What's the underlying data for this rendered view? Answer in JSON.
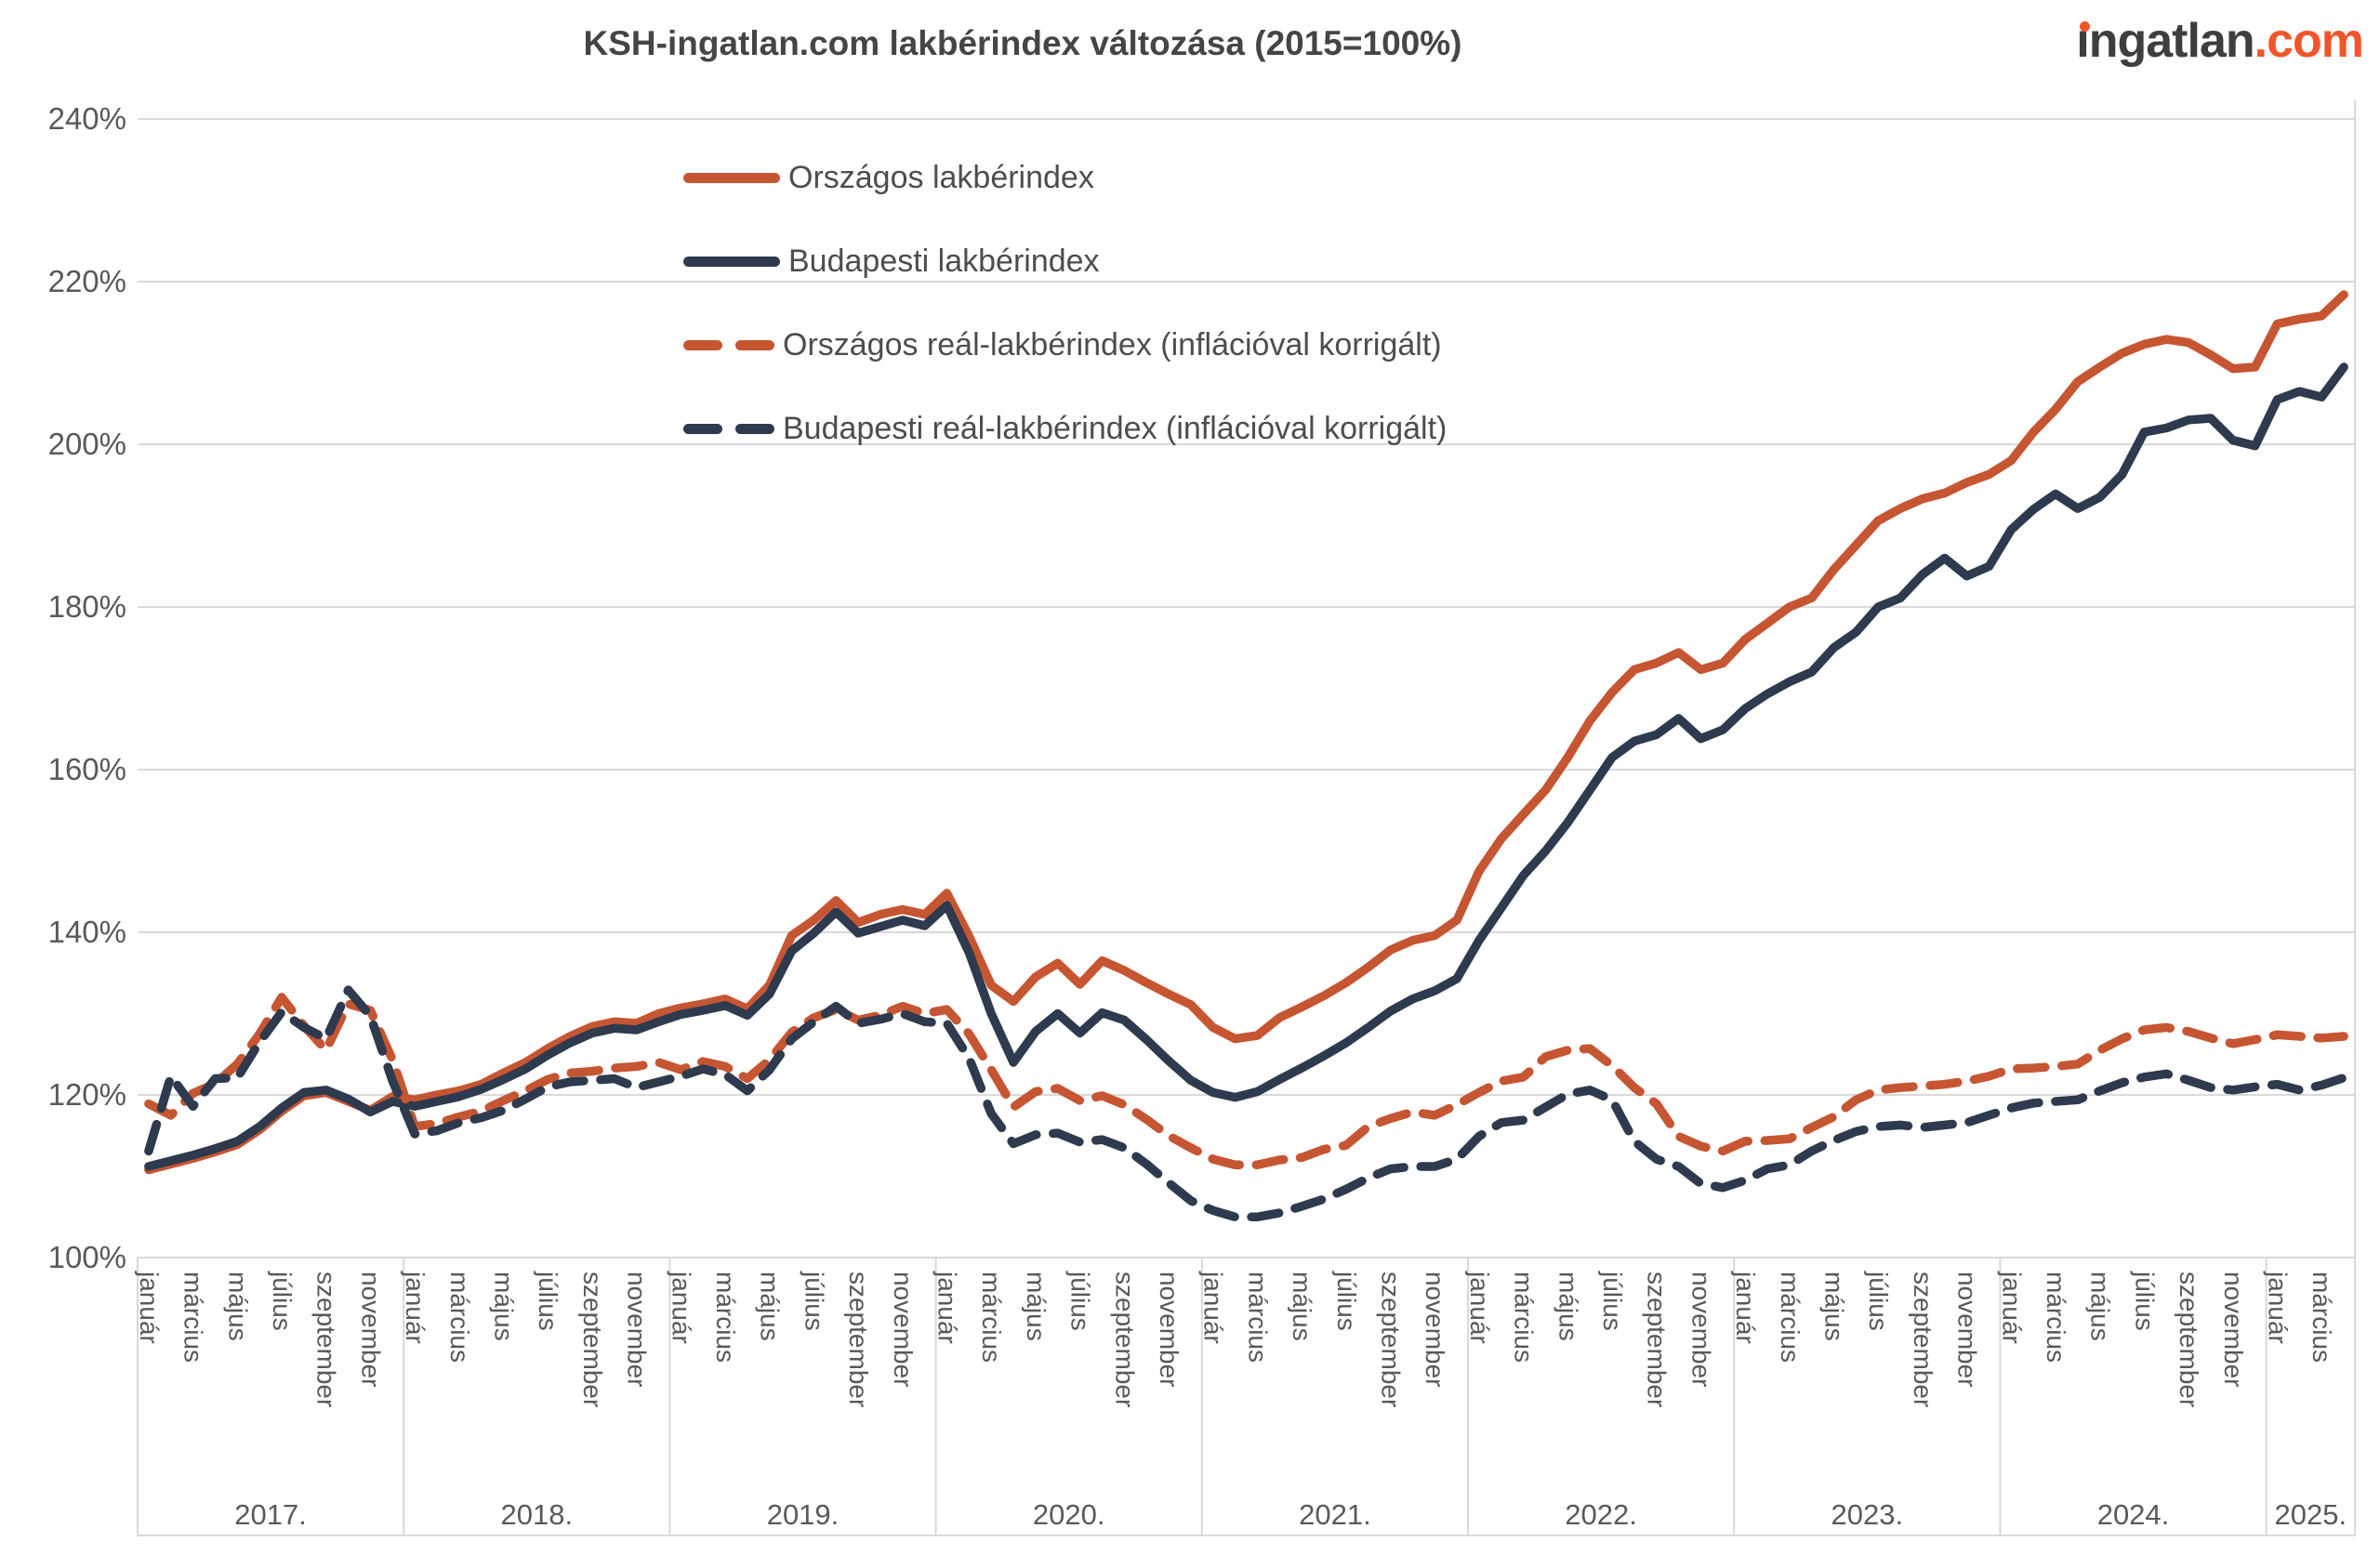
{
  "title": "KSH-ingatlan.com lakbérindex változása (2015=100%)",
  "logo": {
    "name": "ingatlan",
    "tld": ".com",
    "dark_color": "#3e3e3e",
    "orange_color": "#f0562b"
  },
  "colors": {
    "orange_line": "#c65532",
    "navy_line": "#2e3a4d",
    "grid": "#d9d9d9",
    "axis_text": "#595959",
    "title_text": "#454545"
  },
  "legend": [
    {
      "label": "Országos lakbérindex",
      "color": "#c65532",
      "style": "solid"
    },
    {
      "label": "Budapesti lakbérindex",
      "color": "#2e3a4d",
      "style": "solid"
    },
    {
      "label": "Országos reál-lakbérindex (inflációval korrigált)",
      "color": "#c65532",
      "style": "dashed"
    },
    {
      "label": "Budapesti reál-lakbérindex (inflációval korrigált)",
      "color": "#2e3a4d",
      "style": "dashed"
    }
  ],
  "chart_data": {
    "type": "line",
    "title": "KSH-ingatlan.com lakbérindex változása (2015=100%)",
    "ylim": [
      100,
      240
    ],
    "ytick_step": 20,
    "ytick_labels": [
      "240%",
      "220%",
      "200%",
      "180%",
      "160%",
      "140%",
      "120%",
      "100%"
    ],
    "x_unit": "month",
    "start": "2017-01",
    "end": "2025-04",
    "month_tick_offsets": [
      0,
      2,
      4,
      6,
      8,
      10
    ],
    "x_axis": {
      "years": [
        {
          "label": "2017.",
          "n_months": 12,
          "months": [
            "január",
            "március",
            "május",
            "július",
            "szeptember",
            "november"
          ]
        },
        {
          "label": "2018.",
          "n_months": 12,
          "months": [
            "január",
            "március",
            "május",
            "július",
            "szeptember",
            "november"
          ]
        },
        {
          "label": "2019.",
          "n_months": 12,
          "months": [
            "január",
            "március",
            "május",
            "július",
            "szeptember",
            "november"
          ]
        },
        {
          "label": "2020.",
          "n_months": 12,
          "months": [
            "január",
            "március",
            "május",
            "július",
            "szeptember",
            "november"
          ]
        },
        {
          "label": "2021.",
          "n_months": 12,
          "months": [
            "január",
            "március",
            "május",
            "július",
            "szeptember",
            "november"
          ]
        },
        {
          "label": "2022.",
          "n_months": 12,
          "months": [
            "január",
            "március",
            "május",
            "július",
            "szeptember",
            "november"
          ]
        },
        {
          "label": "2023.",
          "n_months": 12,
          "months": [
            "január",
            "március",
            "május",
            "július",
            "szeptember",
            "november"
          ]
        },
        {
          "label": "2024.",
          "n_months": 12,
          "months": [
            "január",
            "március",
            "május",
            "július",
            "szeptember",
            "november"
          ]
        },
        {
          "label": "2025.",
          "n_months": 4,
          "months": [
            "január",
            "március"
          ]
        }
      ]
    },
    "series": [
      {
        "name": "Országos lakbérindex",
        "color": "#c65532",
        "dashed": false,
        "values": [
          110.8,
          111.5,
          112.2,
          113.0,
          113.9,
          115.7,
          118.0,
          119.9,
          120.3,
          119.2,
          118.1,
          119.8,
          119.4,
          120.0,
          120.5,
          121.3,
          122.7,
          124.0,
          125.7,
          127.2,
          128.4,
          129.0,
          128.8,
          130.0,
          130.7,
          131.2,
          131.8,
          130.6,
          133.5,
          139.6,
          141.5,
          143.9,
          141.2,
          142.2,
          142.8,
          142.2,
          144.8,
          139.5,
          133.5,
          131.5,
          134.5,
          136.2,
          133.6,
          136.5,
          135.3,
          133.8,
          132.4,
          131.1,
          128.3,
          126.9,
          127.3,
          129.5,
          130.8,
          132.2,
          133.8,
          135.7,
          137.8,
          139.0,
          139.6,
          141.5,
          147.5,
          151.5,
          154.5,
          157.5,
          161.5,
          166.0,
          169.5,
          172.3,
          173.1,
          174.4,
          172.3,
          173.1,
          176.0,
          178.0,
          180.0,
          181.1,
          184.6,
          187.6,
          190.6,
          192.1,
          193.3,
          194.0,
          195.3,
          196.3,
          198.0,
          201.5,
          204.3,
          207.7,
          209.5,
          211.2,
          212.3,
          212.9,
          212.5,
          211.0,
          209.3,
          209.5,
          214.8,
          215.4,
          215.8,
          218.4
        ]
      },
      {
        "name": "Budapesti lakbérindex",
        "color": "#2e3a4d",
        "dashed": false,
        "values": [
          111.2,
          111.9,
          112.6,
          113.4,
          114.3,
          116.1,
          118.4,
          120.3,
          120.6,
          119.5,
          117.9,
          119.2,
          118.6,
          119.2,
          119.8,
          120.7,
          121.9,
          123.2,
          124.9,
          126.4,
          127.6,
          128.2,
          128.0,
          129.0,
          129.9,
          130.4,
          131.0,
          129.8,
          132.4,
          137.7,
          139.9,
          142.5,
          139.9,
          140.7,
          141.5,
          140.8,
          143.3,
          137.5,
          130.0,
          124.0,
          127.8,
          130.0,
          127.6,
          130.1,
          129.2,
          126.8,
          124.2,
          121.8,
          120.3,
          119.7,
          120.4,
          121.9,
          123.3,
          124.8,
          126.4,
          128.3,
          130.3,
          131.8,
          132.8,
          134.3,
          139.0,
          143.0,
          147.0,
          150.0,
          153.5,
          157.5,
          161.5,
          163.5,
          164.3,
          166.3,
          163.8,
          164.9,
          167.5,
          169.3,
          170.8,
          172.0,
          175.0,
          176.9,
          180.0,
          181.1,
          184.0,
          186.0,
          183.8,
          185.0,
          189.5,
          192.0,
          193.9,
          192.1,
          193.5,
          196.3,
          201.5,
          202.0,
          203.0,
          203.2,
          200.5,
          199.8,
          205.5,
          206.5,
          205.8,
          209.5
        ]
      },
      {
        "name": "Országos reál-lakbérindex (inflációval korrigált)",
        "color": "#c65532",
        "dashed": true,
        "values": [
          118.9,
          117.5,
          120.2,
          121.4,
          123.8,
          127.5,
          132.0,
          128.5,
          125.5,
          131.2,
          130.4,
          124.3,
          116.1,
          116.5,
          117.3,
          118.0,
          119.3,
          120.5,
          121.9,
          122.7,
          122.9,
          123.3,
          123.5,
          124.0,
          123.1,
          124.1,
          123.5,
          122.0,
          124.3,
          127.7,
          129.5,
          130.5,
          129.2,
          129.8,
          130.9,
          130.0,
          130.5,
          127.5,
          123.1,
          118.5,
          120.4,
          120.8,
          119.3,
          119.9,
          118.8,
          117.0,
          115.0,
          113.5,
          112.1,
          111.4,
          111.4,
          112.0,
          112.3,
          113.3,
          113.8,
          116.1,
          117.1,
          117.9,
          117.5,
          118.8,
          120.3,
          121.7,
          122.2,
          124.7,
          125.5,
          125.7,
          123.6,
          120.9,
          118.9,
          114.9,
          113.7,
          113.1,
          114.3,
          114.4,
          114.6,
          116.0,
          117.3,
          119.4,
          120.6,
          120.9,
          121.1,
          121.3,
          121.7,
          122.3,
          123.2,
          123.3,
          123.5,
          123.8,
          125.5,
          126.9,
          128.0,
          128.3,
          127.8,
          127.0,
          126.3,
          126.8,
          127.4,
          127.2,
          127.0,
          127.2
        ]
      },
      {
        "name": "Budapesti reál-lakbérindex (inflációval korrigált)",
        "color": "#2e3a4d",
        "dashed": true,
        "values": [
          113.1,
          122.3,
          118.6,
          122.0,
          122.1,
          126.5,
          130.2,
          128.3,
          126.9,
          132.9,
          129.7,
          121.7,
          115.2,
          115.6,
          116.6,
          117.2,
          118.1,
          119.5,
          121.0,
          121.6,
          121.8,
          122.0,
          120.9,
          121.6,
          122.3,
          123.2,
          122.5,
          120.5,
          123.1,
          126.9,
          129.0,
          130.9,
          128.8,
          129.3,
          130.0,
          129.0,
          128.8,
          124.5,
          117.7,
          114.0,
          115.1,
          115.3,
          114.2,
          114.5,
          113.5,
          111.5,
          109.2,
          107.0,
          105.8,
          105.0,
          105.0,
          105.5,
          106.3,
          107.2,
          108.4,
          109.8,
          110.9,
          111.2,
          111.2,
          112.1,
          114.9,
          116.6,
          116.9,
          118.5,
          120.1,
          120.6,
          119.4,
          114.3,
          112.1,
          111.2,
          109.1,
          108.6,
          109.5,
          110.9,
          111.4,
          113.1,
          114.4,
          115.5,
          116.1,
          116.3,
          116.0,
          116.3,
          116.6,
          117.5,
          118.4,
          119.0,
          119.2,
          119.4,
          120.5,
          121.5,
          122.2,
          122.6,
          121.8,
          120.9,
          120.6,
          121.0,
          121.3,
          120.6,
          121.2,
          122.1
        ]
      }
    ]
  }
}
